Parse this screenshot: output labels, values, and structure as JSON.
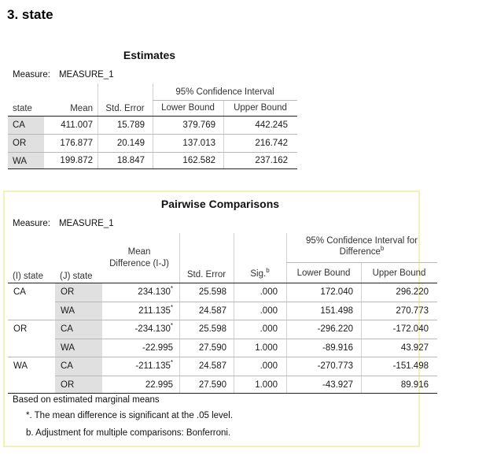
{
  "heading": "3. state",
  "estimates": {
    "title": "Estimates",
    "measure_label": "Measure:",
    "measure_value": "MEASURE_1",
    "ci_header": "95% Confidence Interval",
    "columns": [
      "state",
      "Mean",
      "Std. Error",
      "Lower Bound",
      "Upper Bound"
    ],
    "rows": [
      {
        "state": "CA",
        "mean": "411.007",
        "se": "15.789",
        "lower": "379.769",
        "upper": "442.245"
      },
      {
        "state": "OR",
        "mean": "176.877",
        "se": "20.149",
        "lower": "137.013",
        "upper": "216.742"
      },
      {
        "state": "WA",
        "mean": "199.872",
        "se": "18.847",
        "lower": "162.582",
        "upper": "237.162"
      }
    ]
  },
  "pairwise": {
    "title": "Pairwise Comparisons",
    "measure_label": "Measure:",
    "measure_value": "MEASURE_1",
    "ci_header": "95% Confidence Interval for Difference",
    "ci_header_sup": "b",
    "columns": {
      "i_state": "(I) state",
      "j_state": "(J) state",
      "mean_diff": "Mean Difference (I-J)",
      "se": "Std. Error",
      "sig": "Sig.",
      "sig_sup": "b",
      "lower": "Lower Bound",
      "upper": "Upper Bound"
    },
    "rows": [
      {
        "i": "CA",
        "j": "OR",
        "diff": "234.130",
        "star": "*",
        "se": "25.598",
        "sig": ".000",
        "lower": "172.040",
        "upper": "296.220"
      },
      {
        "i": "",
        "j": "WA",
        "diff": "211.135",
        "star": "*",
        "se": "24.587",
        "sig": ".000",
        "lower": "151.498",
        "upper": "270.773"
      },
      {
        "i": "OR",
        "j": "CA",
        "diff": "-234.130",
        "star": "*",
        "se": "25.598",
        "sig": ".000",
        "lower": "-296.220",
        "upper": "-172.040"
      },
      {
        "i": "",
        "j": "WA",
        "diff": "-22.995",
        "star": "",
        "se": "27.590",
        "sig": "1.000",
        "lower": "-89.916",
        "upper": "43.927"
      },
      {
        "i": "WA",
        "j": "CA",
        "diff": "-211.135",
        "star": "*",
        "se": "24.587",
        "sig": ".000",
        "lower": "-270.773",
        "upper": "-151.498"
      },
      {
        "i": "",
        "j": "OR",
        "diff": "22.995",
        "star": "",
        "se": "27.590",
        "sig": "1.000",
        "lower": "-43.927",
        "upper": "89.916"
      }
    ],
    "footnotes": [
      "Based on estimated marginal means",
      "*. The mean difference is significant at the .05 level.",
      "b. Adjustment for multiple comparisons: Bonferroni."
    ]
  }
}
